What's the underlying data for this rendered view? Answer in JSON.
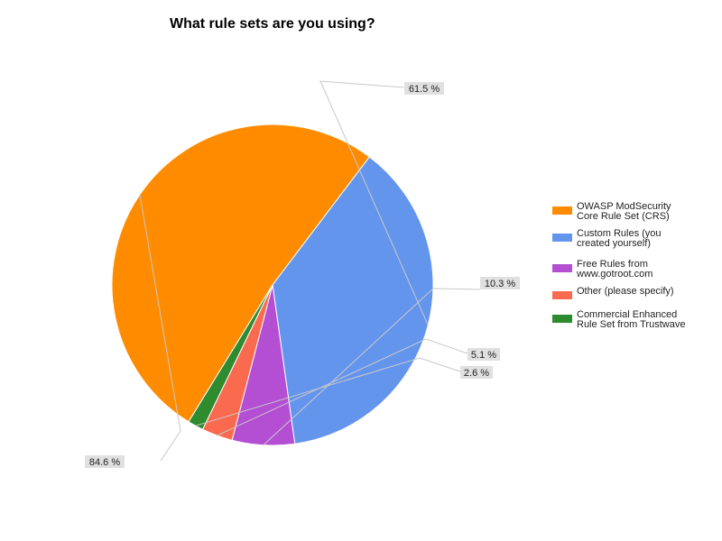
{
  "chart_data": {
    "type": "pie",
    "title": "What rule sets are you using?",
    "categories": [
      "OWASP ModSecurity Core Rule Set (CRS)",
      "Custom Rules (you created yourself)",
      "Free Rules from www.gotroot.com",
      "Other (please specify)",
      "Commercial Enhanced Rule Set from Trustwave"
    ],
    "values": [
      84.6,
      61.5,
      10.3,
      5.1,
      2.6
    ],
    "value_labels": [
      "84.6 %",
      "61.5 %",
      "10.3 %",
      "5.1 %",
      "2.6 %"
    ],
    "colors": [
      "#ff8c00",
      "#6495ed",
      "#b44fd3",
      "#fa6a4f",
      "#2e8b2e"
    ],
    "legend_lines": [
      [
        "OWASP ModSecurity",
        "Core Rule Set (CRS)"
      ],
      [
        "Custom Rules (you",
        "created yourself)"
      ],
      [
        "Free Rules from",
        "www.gotroot.com"
      ],
      [
        "Other (please specify)"
      ],
      [
        "Commercial Enhanced",
        "Rule Set from Trustwave"
      ]
    ],
    "legend_position": "right"
  }
}
